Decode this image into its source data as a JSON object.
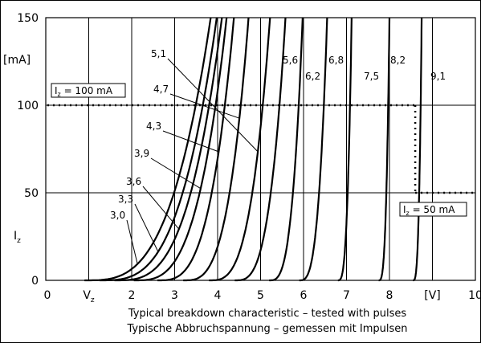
{
  "chart_data": {
    "type": "line",
    "xlim": [
      0,
      10
    ],
    "ylim": [
      0,
      150
    ],
    "x_ticks": [
      "0",
      "1",
      "2",
      "3",
      "4",
      "5",
      "6",
      "7",
      "8",
      "9",
      "10"
    ],
    "x_tick_vz": "V",
    "x_tick_vz_sub": "z",
    "x_unit": "[V]",
    "y_ticks": [
      "0",
      "50",
      "100",
      "150"
    ],
    "y_unit": "[mA]",
    "y_axis_symbol": "I",
    "y_axis_symbol_sub": "z",
    "grid": true,
    "caption_en": "Typical breakdown characteristic – tested with pulses",
    "caption_de": "Typische Abbruchspannung – gemessen mit Impulsen",
    "reference_lines": [
      {
        "current": 100,
        "label_symbol": "I",
        "label_sub": "z",
        "label_value": " = 100 mA",
        "style": "dotted"
      },
      {
        "current": 50,
        "label_symbol": "I",
        "label_sub": "z",
        "label_value": " = 50 mA",
        "style": "dotted"
      }
    ],
    "series": [
      {
        "name": "3,0",
        "v_at_0": 0.9,
        "v_at_150": 3.84
      },
      {
        "name": "3,3",
        "v_at_0": 1.25,
        "v_at_150": 3.98
      },
      {
        "name": "3,6",
        "v_at_0": 1.6,
        "v_at_150": 4.1
      },
      {
        "name": "3,9",
        "v_at_0": 2.05,
        "v_at_150": 4.21
      },
      {
        "name": "4,3",
        "v_at_0": 2.6,
        "v_at_150": 4.38
      },
      {
        "name": "4,7",
        "v_at_0": 3.2,
        "v_at_150": 4.72
      },
      {
        "name": "5,1",
        "v_at_0": 3.8,
        "v_at_150": 5.22
      },
      {
        "name": "5,6",
        "v_at_0": 4.4,
        "v_at_150": 5.58
      },
      {
        "name": "6,2",
        "v_at_0": 5.2,
        "v_at_150": 5.98
      },
      {
        "name": "6,8",
        "v_at_0": 5.9,
        "v_at_150": 6.55
      },
      {
        "name": "7,5",
        "v_at_0": 6.8,
        "v_at_150": 7.12
      },
      {
        "name": "8,2",
        "v_at_0": 7.75,
        "v_at_150": 8.0
      },
      {
        "name": "9,1",
        "v_at_0": 8.55,
        "v_at_150": 8.75
      }
    ]
  }
}
